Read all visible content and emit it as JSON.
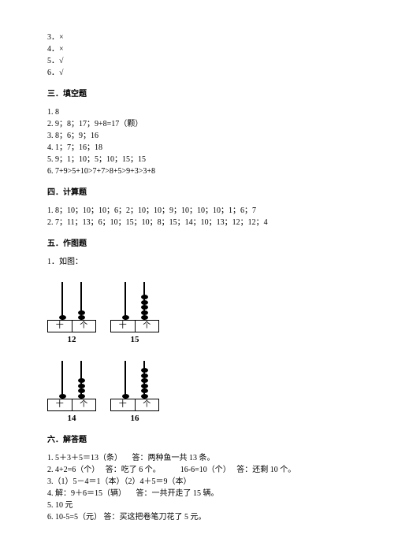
{
  "top_items": [
    "3．×",
    "4．×",
    "5．√",
    "6．√"
  ],
  "sec3": {
    "heading": "三．填空题",
    "lines": [
      "1. 8",
      "2. 9；8；17；9+8=17（颗）",
      "3. 8；6；9；16",
      "4. 1；7；16；18",
      "5. 9；1；10；5；10；15；15",
      "6. 7+9>5+10>7+7>8+5>9+3>3+8"
    ]
  },
  "sec4": {
    "heading": "四．计算题",
    "lines": [
      "1. 8；10；10；10；6；2；10；10；9；10；10；10；1；6；7",
      "2. 7；11；13；6；10；15；10；8；15；14；10；13；12；12；4"
    ]
  },
  "sec5": {
    "heading": "五．作图题",
    "intro": "1．如图：",
    "place_chars": {
      "tens": "十",
      "ones": "个"
    },
    "abaci": [
      [
        {
          "tens_beads": 1,
          "ones_beads": 2,
          "label": "12"
        },
        {
          "tens_beads": 1,
          "ones_beads": 5,
          "label": "15"
        }
      ],
      [
        {
          "tens_beads": 1,
          "ones_beads": 4,
          "label": "14"
        },
        {
          "tens_beads": 1,
          "ones_beads": 6,
          "label": "16"
        }
      ]
    ]
  },
  "sec6": {
    "heading": "六．解答题",
    "lines": [
      "1. 5＋3＋5＝13（条）     答：两种鱼一共 13 条。",
      "2. 4+2=6（个）   答：吃了 6 个。          16-6=10（个）   答：还剩 10 个。",
      "3.（1）5－4＝1（本）（2）4＋5＝9（本）",
      "4. 解：9＋6＝15（辆）     答：一共开走了 15 辆。",
      "5. 10 元",
      "6. 10-5=5（元） 答：买这把卷笔刀花了 5 元。"
    ]
  }
}
